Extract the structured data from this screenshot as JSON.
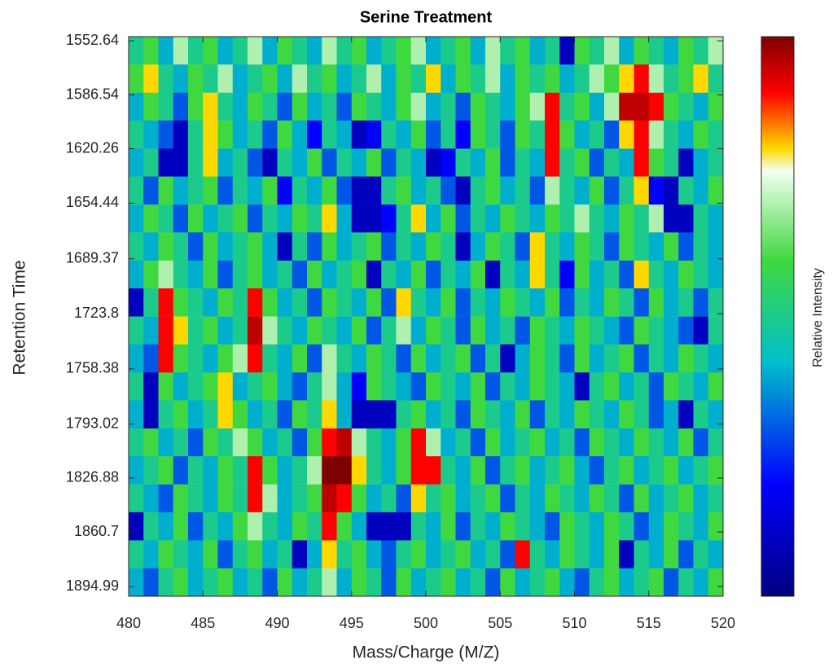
{
  "chart_data": {
    "type": "heatmap",
    "title": "Serine Treatment",
    "xlabel": "Mass/Charge (M/Z)",
    "ylabel": "Retention Time",
    "colorbar_label": "Relative Intensity",
    "x": [
      480.5,
      481.5,
      482.5,
      483.5,
      484.5,
      485.5,
      486.5,
      487.5,
      488.5,
      489.5,
      490.5,
      491.5,
      492.5,
      493.5,
      494.5,
      495.5,
      496.5,
      497.5,
      498.5,
      499.5,
      500.5,
      501.5,
      502.5,
      503.5,
      504.5,
      505.5,
      506.5,
      507.5,
      508.5,
      509.5,
      510.5,
      511.5,
      512.5,
      513.5,
      514.5,
      515.5,
      516.5,
      517.5,
      518.5,
      519.5
    ],
    "y": [
      1558.8,
      1576.3,
      1593.9,
      1611.4,
      1629.0,
      1646.5,
      1664.1,
      1681.6,
      1699.2,
      1716.7,
      1734.3,
      1751.8,
      1769.4,
      1786.9,
      1804.5,
      1822.0,
      1839.6,
      1857.1,
      1874.7,
      1892.2
    ],
    "values": [
      [
        0.5,
        0.6,
        0.4,
        0.7,
        0.5,
        0.6,
        0.4,
        0.5,
        0.7,
        0.4,
        0.6,
        0.5,
        0.4,
        0.7,
        0.5,
        0.6,
        0.4,
        0.5,
        0.6,
        0.7,
        0.4,
        0.5,
        0.6,
        0.4,
        0.7,
        0.5,
        0.6,
        0.4,
        0.5,
        0.1,
        0.6,
        0.5,
        0.7,
        0.4,
        0.6,
        0.5,
        0.4,
        0.6,
        0.5,
        0.7
      ],
      [
        0.6,
        0.8,
        0.5,
        0.4,
        0.6,
        0.5,
        0.7,
        0.4,
        0.5,
        0.6,
        0.4,
        0.7,
        0.5,
        0.6,
        0.4,
        0.5,
        0.7,
        0.4,
        0.6,
        0.5,
        0.8,
        0.4,
        0.6,
        0.5,
        0.7,
        0.4,
        0.6,
        0.5,
        0.6,
        0.4,
        0.5,
        0.7,
        0.6,
        0.8,
        0.9,
        0.7,
        0.5,
        0.6,
        0.8,
        0.5
      ],
      [
        0.4,
        0.6,
        0.5,
        0.3,
        0.6,
        0.8,
        0.5,
        0.4,
        0.6,
        0.5,
        0.3,
        0.6,
        0.4,
        0.5,
        0.3,
        0.6,
        0.5,
        0.4,
        0.6,
        0.7,
        0.4,
        0.5,
        0.3,
        0.6,
        0.5,
        0.4,
        0.6,
        0.7,
        0.9,
        0.5,
        0.6,
        0.4,
        0.7,
        0.95,
        0.95,
        0.9,
        0.6,
        0.5,
        0.4,
        0.6
      ],
      [
        0.5,
        0.4,
        0.3,
        0.1,
        0.5,
        0.8,
        0.6,
        0.4,
        0.5,
        0.3,
        0.6,
        0.4,
        0.2,
        0.5,
        0.4,
        0.1,
        0.2,
        0.5,
        0.4,
        0.6,
        0.3,
        0.5,
        0.2,
        0.6,
        0.5,
        0.3,
        0.6,
        0.5,
        0.9,
        0.6,
        0.4,
        0.5,
        0.3,
        0.8,
        0.9,
        0.7,
        0.5,
        0.4,
        0.6,
        0.5
      ],
      [
        0.4,
        0.5,
        0.1,
        0.1,
        0.5,
        0.8,
        0.4,
        0.5,
        0.3,
        0.1,
        0.5,
        0.4,
        0.6,
        0.3,
        0.5,
        0.4,
        0.6,
        0.3,
        0.5,
        0.4,
        0.1,
        0.2,
        0.5,
        0.4,
        0.6,
        0.3,
        0.5,
        0.4,
        0.9,
        0.5,
        0.6,
        0.3,
        0.5,
        0.4,
        0.9,
        0.6,
        0.5,
        0.1,
        0.4,
        0.5
      ],
      [
        0.5,
        0.3,
        0.6,
        0.4,
        0.5,
        0.6,
        0.3,
        0.5,
        0.4,
        0.6,
        0.2,
        0.5,
        0.4,
        0.6,
        0.3,
        0.1,
        0.1,
        0.5,
        0.6,
        0.4,
        0.5,
        0.3,
        0.1,
        0.5,
        0.6,
        0.4,
        0.5,
        0.3,
        0.7,
        0.5,
        0.4,
        0.6,
        0.3,
        0.5,
        0.8,
        0.2,
        0.1,
        0.5,
        0.4,
        0.6
      ],
      [
        0.4,
        0.6,
        0.5,
        0.3,
        0.6,
        0.4,
        0.5,
        0.6,
        0.3,
        0.5,
        0.4,
        0.6,
        0.5,
        0.8,
        0.4,
        0.1,
        0.1,
        0.2,
        0.5,
        0.8,
        0.4,
        0.6,
        0.3,
        0.5,
        0.4,
        0.6,
        0.5,
        0.4,
        0.6,
        0.5,
        0.7,
        0.5,
        0.4,
        0.6,
        0.5,
        0.7,
        0.1,
        0.1,
        0.5,
        0.4
      ],
      [
        0.5,
        0.4,
        0.6,
        0.5,
        0.3,
        0.6,
        0.4,
        0.5,
        0.6,
        0.4,
        0.1,
        0.5,
        0.3,
        0.6,
        0.4,
        0.5,
        0.6,
        0.3,
        0.5,
        0.4,
        0.6,
        0.5,
        0.1,
        0.4,
        0.6,
        0.5,
        0.3,
        0.8,
        0.5,
        0.4,
        0.6,
        0.5,
        0.3,
        0.6,
        0.5,
        0.4,
        0.6,
        0.3,
        0.5,
        0.4
      ],
      [
        0.4,
        0.6,
        0.7,
        0.5,
        0.4,
        0.6,
        0.3,
        0.5,
        0.6,
        0.4,
        0.5,
        0.3,
        0.6,
        0.4,
        0.5,
        0.6,
        0.1,
        0.5,
        0.4,
        0.6,
        0.3,
        0.5,
        0.4,
        0.6,
        0.1,
        0.5,
        0.4,
        0.8,
        0.5,
        0.2,
        0.6,
        0.4,
        0.5,
        0.3,
        0.8,
        0.5,
        0.4,
        0.6,
        0.5,
        0.4
      ],
      [
        0.1,
        0.5,
        0.9,
        0.6,
        0.5,
        0.4,
        0.6,
        0.5,
        0.9,
        0.6,
        0.4,
        0.5,
        0.3,
        0.6,
        0.5,
        0.4,
        0.6,
        0.3,
        0.8,
        0.5,
        0.4,
        0.6,
        0.3,
        0.5,
        0.4,
        0.6,
        0.5,
        0.4,
        0.6,
        0.3,
        0.5,
        0.4,
        0.6,
        0.5,
        0.3,
        0.6,
        0.4,
        0.5,
        0.3,
        0.5
      ],
      [
        0.5,
        0.4,
        0.9,
        0.8,
        0.5,
        0.6,
        0.4,
        0.5,
        0.95,
        0.7,
        0.5,
        0.4,
        0.6,
        0.5,
        0.4,
        0.6,
        0.3,
        0.5,
        0.7,
        0.4,
        0.6,
        0.5,
        0.3,
        0.6,
        0.4,
        0.5,
        0.3,
        0.6,
        0.5,
        0.4,
        0.6,
        0.5,
        0.4,
        0.3,
        0.6,
        0.5,
        0.4,
        0.3,
        0.1,
        0.5
      ],
      [
        0.4,
        0.3,
        0.9,
        0.6,
        0.5,
        0.4,
        0.6,
        0.7,
        0.9,
        0.5,
        0.4,
        0.6,
        0.3,
        0.7,
        0.5,
        0.4,
        0.6,
        0.5,
        0.3,
        0.6,
        0.4,
        0.5,
        0.6,
        0.3,
        0.5,
        0.1,
        0.4,
        0.6,
        0.5,
        0.3,
        0.6,
        0.4,
        0.5,
        0.6,
        0.3,
        0.5,
        0.4,
        0.6,
        0.5,
        0.4
      ],
      [
        0.5,
        0.1,
        0.6,
        0.4,
        0.5,
        0.6,
        0.8,
        0.4,
        0.5,
        0.6,
        0.4,
        0.3,
        0.5,
        0.7,
        0.4,
        0.2,
        0.6,
        0.5,
        0.4,
        0.3,
        0.6,
        0.5,
        0.4,
        0.6,
        0.3,
        0.5,
        0.4,
        0.6,
        0.5,
        0.4,
        0.1,
        0.5,
        0.6,
        0.4,
        0.5,
        0.3,
        0.6,
        0.5,
        0.4,
        0.6
      ],
      [
        0.4,
        0.1,
        0.5,
        0.6,
        0.4,
        0.5,
        0.8,
        0.6,
        0.4,
        0.5,
        0.3,
        0.6,
        0.5,
        0.8,
        0.4,
        0.1,
        0.1,
        0.1,
        0.5,
        0.6,
        0.4,
        0.5,
        0.3,
        0.6,
        0.5,
        0.4,
        0.6,
        0.3,
        0.5,
        0.4,
        0.6,
        0.5,
        0.4,
        0.6,
        0.5,
        0.3,
        0.4,
        0.1,
        0.5,
        0.4
      ],
      [
        0.5,
        0.6,
        0.4,
        0.5,
        0.3,
        0.6,
        0.5,
        0.7,
        0.6,
        0.4,
        0.5,
        0.3,
        0.6,
        0.9,
        0.95,
        0.7,
        0.5,
        0.4,
        0.6,
        0.9,
        0.7,
        0.4,
        0.5,
        0.3,
        0.6,
        0.4,
        0.5,
        0.6,
        0.4,
        0.5,
        0.3,
        0.6,
        0.5,
        0.4,
        0.6,
        0.5,
        0.4,
        0.6,
        0.3,
        0.5
      ],
      [
        0.4,
        0.5,
        0.6,
        0.3,
        0.5,
        0.4,
        0.6,
        0.5,
        0.9,
        0.6,
        0.4,
        0.5,
        0.7,
        1.0,
        1.0,
        0.8,
        0.5,
        0.4,
        0.6,
        0.9,
        0.9,
        0.5,
        0.4,
        0.6,
        0.3,
        0.5,
        0.6,
        0.4,
        0.5,
        0.6,
        0.4,
        0.3,
        0.5,
        0.6,
        0.4,
        0.5,
        0.6,
        0.4,
        0.5,
        0.6
      ],
      [
        0.5,
        0.4,
        0.3,
        0.6,
        0.5,
        0.4,
        0.6,
        0.5,
        0.9,
        0.7,
        0.4,
        0.5,
        0.6,
        0.95,
        0.9,
        0.6,
        0.4,
        0.5,
        0.3,
        0.8,
        0.5,
        0.6,
        0.4,
        0.5,
        0.6,
        0.3,
        0.5,
        0.4,
        0.6,
        0.5,
        0.4,
        0.6,
        0.5,
        0.3,
        0.6,
        0.4,
        0.5,
        0.6,
        0.4,
        0.5
      ],
      [
        0.1,
        0.5,
        0.4,
        0.6,
        0.3,
        0.5,
        0.4,
        0.6,
        0.7,
        0.5,
        0.4,
        0.6,
        0.5,
        0.9,
        0.6,
        0.4,
        0.1,
        0.1,
        0.1,
        0.5,
        0.4,
        0.6,
        0.3,
        0.5,
        0.4,
        0.6,
        0.5,
        0.4,
        0.3,
        0.6,
        0.5,
        0.4,
        0.6,
        0.5,
        0.3,
        0.4,
        0.6,
        0.5,
        0.4,
        0.6
      ],
      [
        0.5,
        0.4,
        0.6,
        0.5,
        0.4,
        0.6,
        0.3,
        0.5,
        0.6,
        0.4,
        0.5,
        0.1,
        0.4,
        0.8,
        0.5,
        0.6,
        0.4,
        0.3,
        0.5,
        0.6,
        0.4,
        0.5,
        0.6,
        0.4,
        0.5,
        0.3,
        0.9,
        0.5,
        0.4,
        0.6,
        0.5,
        0.4,
        0.6,
        0.1,
        0.5,
        0.4,
        0.6,
        0.3,
        0.5,
        0.4
      ],
      [
        0.4,
        0.3,
        0.5,
        0.6,
        0.4,
        0.5,
        0.6,
        0.4,
        0.5,
        0.3,
        0.6,
        0.4,
        0.5,
        0.7,
        0.4,
        0.6,
        0.5,
        0.3,
        0.6,
        0.4,
        0.5,
        0.6,
        0.4,
        0.5,
        0.3,
        0.6,
        0.4,
        0.5,
        0.6,
        0.4,
        0.3,
        0.5,
        0.6,
        0.4,
        0.5,
        0.6,
        0.3,
        0.5,
        0.4,
        0.6
      ]
    ],
    "xlim": [
      480,
      520
    ],
    "xticks": [
      480,
      485,
      490,
      495,
      500,
      505,
      510,
      515,
      520
    ],
    "ylim": [
      1550,
      1901
    ],
    "y_reversed": true,
    "yticks": [
      1552.64,
      1586.54,
      1620.26,
      1654.44,
      1689.37,
      1723.8,
      1758.38,
      1793.02,
      1826.88,
      1860.7,
      1894.99
    ],
    "zlim": [
      0,
      1
    ],
    "colormap": [
      {
        "value": 0,
        "color": "#00007f"
      },
      {
        "value": 0.2,
        "color": "#0000ff"
      },
      {
        "value": 0.42,
        "color": "#00c0c8"
      },
      {
        "value": 0.6,
        "color": "#40d840"
      },
      {
        "value": 0.76,
        "color": "#f2fff2"
      },
      {
        "value": 0.8,
        "color": "#ffd800"
      },
      {
        "value": 0.9,
        "color": "#ff0000"
      },
      {
        "value": 1,
        "color": "#7f0000"
      }
    ]
  }
}
